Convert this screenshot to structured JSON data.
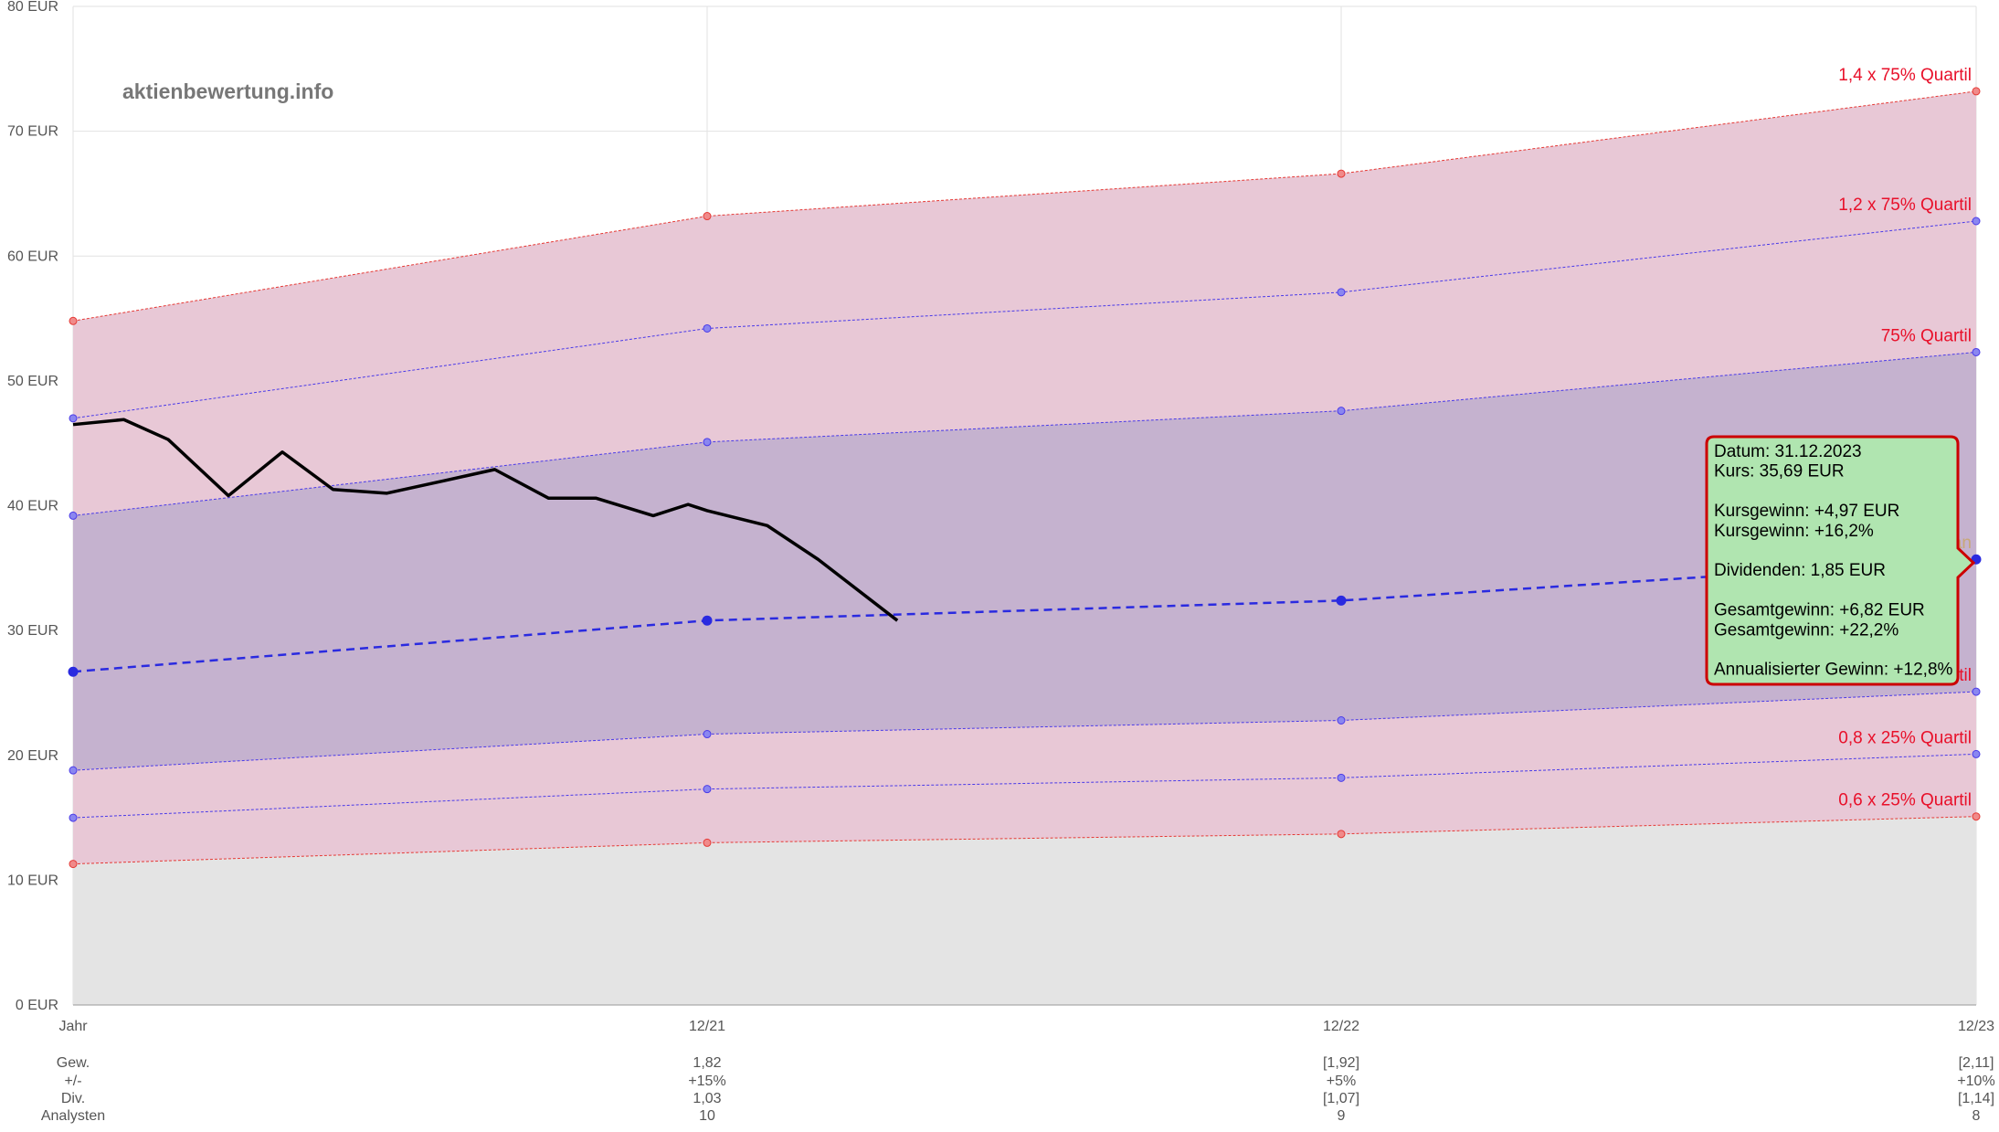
{
  "watermark": "aktienbewertung.info",
  "chart_data": {
    "type": "area",
    "y_unit": "EUR",
    "ylim": [
      0,
      80
    ],
    "y_ticks": [
      0,
      10,
      20,
      30,
      40,
      50,
      60,
      70,
      80
    ],
    "y_tick_labels": [
      "0 EUR",
      "10 EUR",
      "20 EUR",
      "30 EUR",
      "40 EUR",
      "50 EUR",
      "60 EUR",
      "70 EUR",
      "80 EUR"
    ],
    "categories": [
      "Jahr",
      "12/21",
      "12/22",
      "12/23"
    ],
    "grid": true,
    "bands": [
      {
        "label": "1,4 x 75% Quartil",
        "values": [
          54.8,
          63.2,
          66.6,
          73.2
        ],
        "color": "#e53935"
      },
      {
        "label": "1,2 x 75% Quartil",
        "values": [
          47.0,
          54.2,
          57.1,
          62.8
        ],
        "color": "#4a3ae8"
      },
      {
        "label": "75% Quartil",
        "values": [
          39.2,
          45.1,
          47.6,
          52.3
        ],
        "color": "#4a3ae8"
      },
      {
        "label": "Median",
        "values": [
          26.7,
          30.8,
          32.4,
          35.7
        ],
        "color": "#2a2ae0"
      },
      {
        "label": "25% Quartil",
        "values": [
          18.8,
          21.7,
          22.8,
          25.1
        ],
        "color": "#4a3ae8"
      },
      {
        "label": "0,8 x 25% Quartil",
        "values": [
          15.0,
          17.3,
          18.2,
          20.1
        ],
        "color": "#4a3ae8"
      },
      {
        "label": "0,6 x 25% Quartil",
        "values": [
          11.3,
          13.0,
          13.7,
          15.1
        ],
        "color": "#e53935"
      }
    ],
    "price_series": {
      "x": [
        0,
        0.08,
        0.15,
        0.245,
        0.33,
        0.41,
        0.495,
        0.585,
        0.665,
        0.75,
        0.825,
        0.915,
        0.97,
        1.0,
        1.095,
        1.175,
        1.3
      ],
      "y": [
        46.5,
        46.9,
        45.3,
        40.8,
        44.3,
        41.3,
        41.0,
        42.0,
        42.9,
        40.6,
        40.6,
        39.2,
        40.1,
        39.6,
        38.4,
        35.7,
        30.8
      ]
    },
    "fundamentals": {
      "row_labels": [
        "Gew.",
        "+/-",
        "Div.",
        "Analysten"
      ],
      "columns": [
        [
          "1,82",
          "+15%",
          "1,03",
          "10"
        ],
        [
          "[1,92]",
          "+5%",
          "[1,07]",
          "9"
        ],
        [
          "[2,11]",
          "+10%",
          "[1,14]",
          "8"
        ]
      ]
    },
    "tooltip": {
      "lines": [
        "Datum: 31.12.2023",
        "Kurs: 35,69 EUR",
        "",
        "Kursgewinn: +4,97 EUR",
        "Kursgewinn: +16,2%",
        "",
        "Dividenden: 1,85 EUR",
        "",
        "Gesamtgewinn: +6,82 EUR",
        "Gesamtgewinn: +22,2%",
        "",
        "Annualisierter Gewinn: +12,8%"
      ],
      "background": "#b0e5b0",
      "border": "#cc0000"
    }
  }
}
